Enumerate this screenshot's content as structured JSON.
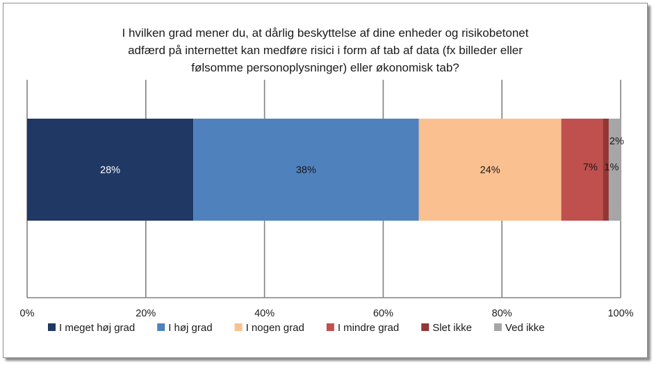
{
  "chart_data": {
    "type": "bar",
    "orientation": "horizontal-stacked-100",
    "title_lines": [
      "I hvilken grad mener du, at dårlig beskyttelse af dine enheder og risikobetonet",
      "adfærd på internettet kan medføre risici i form af tab af data (fx billeder eller",
      "følsomme personoplysninger) eller økonomisk tab?"
    ],
    "xlim": [
      0,
      100
    ],
    "x_ticks": [
      "0%",
      "20%",
      "40%",
      "60%",
      "80%",
      "100%"
    ],
    "grid": true,
    "legend_position": "bottom",
    "series": [
      {
        "name": "I meget høj grad",
        "value": 28,
        "label": "28%",
        "color": "#1f3864",
        "label_color": "#ffffff"
      },
      {
        "name": "I høj grad",
        "value": 38,
        "label": "38%",
        "color": "#4f81bd",
        "label_color": "#1a1a1a"
      },
      {
        "name": "I nogen grad",
        "value": 24,
        "label": "24%",
        "color": "#fac090",
        "label_color": "#1a1a1a"
      },
      {
        "name": "I mindre grad",
        "value": 7,
        "label": "7%",
        "color": "#c0504d",
        "label_color": "#1a1a1a"
      },
      {
        "name": "Slet ikke",
        "value": 1,
        "label": "1%",
        "color": "#943634",
        "label_color": "#1a1a1a"
      },
      {
        "name": "Ved ikke",
        "value": 2,
        "label": "2%",
        "color": "#a6a6a6",
        "label_color": "#1a1a1a"
      }
    ]
  }
}
